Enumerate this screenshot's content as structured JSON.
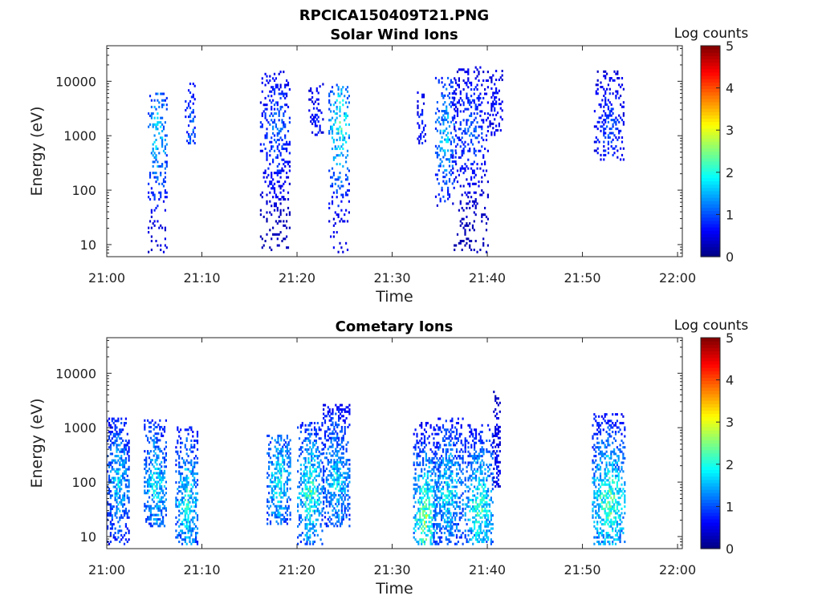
{
  "figure_title": "RPCICA150409T21.PNG",
  "chart_data": [
    {
      "type": "heatmap",
      "title": "Solar Wind Ions",
      "xlabel": "Time",
      "ylabel": "Energy (eV)",
      "x_ticks": [
        "21:00",
        "21:10",
        "21:20",
        "21:30",
        "21:40",
        "21:50",
        "22:00"
      ],
      "xlim_minutes": [
        0,
        60.5
      ],
      "y_ticks": [
        10,
        100,
        1000,
        10000
      ],
      "y_tick_labels": [
        "10",
        "100",
        "1000",
        "10000"
      ],
      "ylim_eV": [
        6,
        45000
      ],
      "y_scale": "log",
      "colorbar": {
        "label": "Log counts",
        "min": 0,
        "max": 5,
        "ticks": [
          "0",
          "1",
          "2",
          "3",
          "4",
          "5"
        ]
      },
      "clusters": [
        {
          "t_start": 4.3,
          "t_end": 6.3,
          "e_low": 7,
          "e_high": 6000,
          "peak_log_counts": 2.3,
          "peak_energy": 1000
        },
        {
          "t_start": 8.2,
          "t_end": 9.3,
          "e_low": 700,
          "e_high": 9000,
          "peak_log_counts": 1.6,
          "peak_energy": 1200
        },
        {
          "t_start": 16.1,
          "t_end": 19.3,
          "e_low": 7,
          "e_high": 15000,
          "peak_log_counts": 1.5,
          "peak_energy": 1300
        },
        {
          "t_start": 21.2,
          "t_end": 22.8,
          "e_low": 1000,
          "e_high": 9000,
          "peak_log_counts": 1.0,
          "peak_energy": 2000
        },
        {
          "t_start": 23.3,
          "t_end": 25.5,
          "e_low": 7,
          "e_high": 9000,
          "peak_log_counts": 2.7,
          "peak_energy": 1500
        },
        {
          "t_start": 32.6,
          "t_end": 33.4,
          "e_low": 700,
          "e_high": 6000,
          "peak_log_counts": 1.2,
          "peak_energy": 1500
        },
        {
          "t_start": 34.5,
          "t_end": 36.6,
          "e_low": 50,
          "e_high": 12000,
          "peak_log_counts": 2.2,
          "peak_energy": 1000
        },
        {
          "t_start": 36.3,
          "t_end": 40.0,
          "e_low": 7,
          "e_high": 18000,
          "peak_log_counts": 1.4,
          "peak_energy": 1200
        },
        {
          "t_start": 40.2,
          "t_end": 41.5,
          "e_low": 1000,
          "e_high": 15000,
          "peak_log_counts": 1.0,
          "peak_energy": 3000
        },
        {
          "t_start": 51.2,
          "t_end": 54.3,
          "e_low": 350,
          "e_high": 15000,
          "peak_log_counts": 1.3,
          "peak_energy": 1300
        }
      ]
    },
    {
      "type": "heatmap",
      "title": "Cometary Ions",
      "xlabel": "Time",
      "ylabel": "Energy (eV)",
      "x_ticks": [
        "21:00",
        "21:10",
        "21:20",
        "21:30",
        "21:40",
        "21:50",
        "22:00"
      ],
      "xlim_minutes": [
        0,
        60.5
      ],
      "y_ticks": [
        10,
        100,
        1000,
        10000
      ],
      "y_tick_labels": [
        "10",
        "100",
        "1000",
        "10000"
      ],
      "ylim_eV": [
        6,
        45000
      ],
      "y_scale": "log",
      "colorbar": {
        "label": "Log counts",
        "min": 0,
        "max": 5,
        "ticks": [
          "0",
          "1",
          "2",
          "3",
          "4",
          "5"
        ]
      },
      "clusters": [
        {
          "t_start": 0.0,
          "t_end": 2.3,
          "e_low": 7,
          "e_high": 1500,
          "peak_log_counts": 2.2,
          "peak_energy": 100
        },
        {
          "t_start": 3.9,
          "t_end": 6.3,
          "e_low": 15,
          "e_high": 1300,
          "peak_log_counts": 2.4,
          "peak_energy": 90
        },
        {
          "t_start": 7.2,
          "t_end": 9.6,
          "e_low": 7,
          "e_high": 1000,
          "peak_log_counts": 2.6,
          "peak_energy": 40
        },
        {
          "t_start": 16.8,
          "t_end": 19.3,
          "e_low": 15,
          "e_high": 700,
          "peak_log_counts": 2.5,
          "peak_energy": 100
        },
        {
          "t_start": 20.0,
          "t_end": 22.6,
          "e_low": 7,
          "e_high": 1200,
          "peak_log_counts": 2.8,
          "peak_energy": 60
        },
        {
          "t_start": 22.7,
          "t_end": 25.5,
          "e_low": 15,
          "e_high": 2500,
          "peak_log_counts": 2.3,
          "peak_energy": 100
        },
        {
          "t_start": 32.2,
          "t_end": 34.6,
          "e_low": 7,
          "e_high": 1200,
          "peak_log_counts": 3.2,
          "peak_energy": 20
        },
        {
          "t_start": 34.3,
          "t_end": 37.4,
          "e_low": 7,
          "e_high": 1400,
          "peak_log_counts": 2.4,
          "peak_energy": 60
        },
        {
          "t_start": 37.6,
          "t_end": 40.6,
          "e_low": 7,
          "e_high": 1100,
          "peak_log_counts": 2.8,
          "peak_energy": 30
        },
        {
          "t_start": 40.6,
          "t_end": 41.3,
          "e_low": 80,
          "e_high": 4500,
          "peak_log_counts": 1.0,
          "peak_energy": 200
        },
        {
          "t_start": 51.0,
          "t_end": 54.4,
          "e_low": 7,
          "e_high": 1700,
          "peak_log_counts": 3.0,
          "peak_energy": 40
        }
      ]
    }
  ]
}
